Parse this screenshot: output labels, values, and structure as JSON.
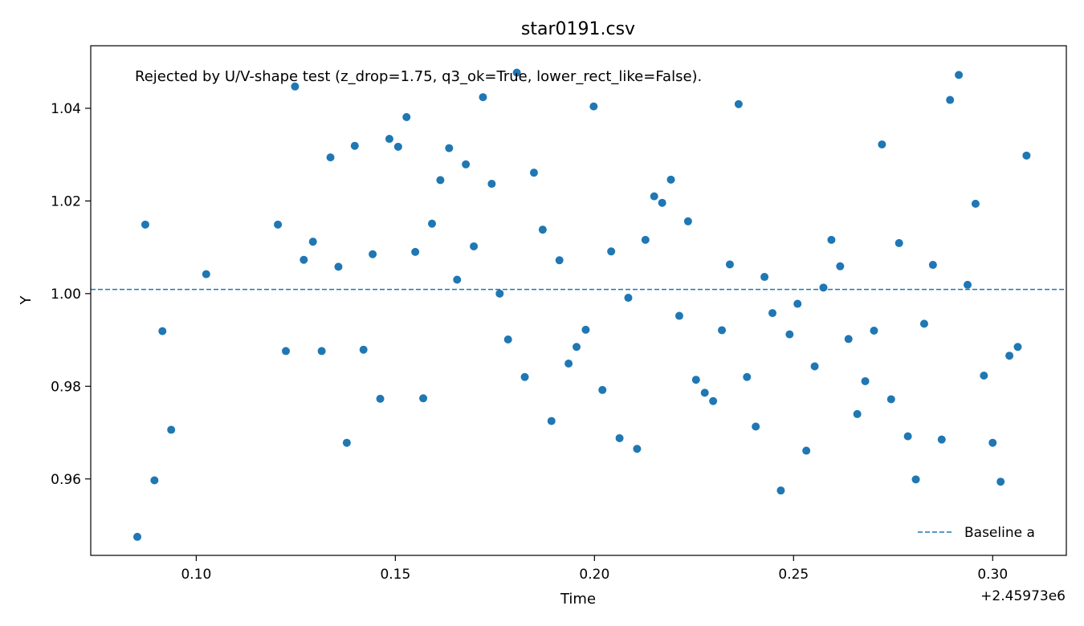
{
  "chart_data": {
    "type": "scatter",
    "title": "star0191.csv",
    "xlabel": "Time",
    "ylabel": "Y",
    "x_offset_label": "+2.45973e6",
    "xlim": [
      0.0735,
      0.3185
    ],
    "ylim": [
      0.9435,
      1.0535
    ],
    "xticks": [
      0.1,
      0.15,
      0.2,
      0.25,
      0.3
    ],
    "xtick_labels": [
      "0.10",
      "0.15",
      "0.20",
      "0.25",
      "0.30"
    ],
    "yticks": [
      0.96,
      0.98,
      1.0,
      1.02,
      1.04
    ],
    "ytick_labels": [
      "0.96",
      "0.98",
      "1.00",
      "1.02",
      "1.04"
    ],
    "grid": false,
    "legend_position": "lower-right",
    "point_color": "#1f77b4",
    "baseline": {
      "name": "Baseline a",
      "y": 1.0009,
      "color": "#1f77b4",
      "style": "dashed"
    },
    "annotation": "Rejected by U/V-shape test (z_drop=1.75, q3_ok=True, lower_rect_like=False).",
    "points": [
      [
        0.0852,
        0.9475
      ],
      [
        0.0872,
        1.0149
      ],
      [
        0.0895,
        0.9597
      ],
      [
        0.0915,
        0.9919
      ],
      [
        0.0937,
        0.9706
      ],
      [
        0.1025,
        1.0042
      ],
      [
        0.1205,
        1.0149
      ],
      [
        0.1225,
        0.9876
      ],
      [
        0.1248,
        1.0447
      ],
      [
        0.127,
        1.0073
      ],
      [
        0.1293,
        1.0112
      ],
      [
        0.1315,
        0.9876
      ],
      [
        0.1337,
        1.0294
      ],
      [
        0.1357,
        1.0058
      ],
      [
        0.1378,
        0.9678
      ],
      [
        0.1398,
        1.0319
      ],
      [
        0.142,
        0.9879
      ],
      [
        0.1443,
        1.0085
      ],
      [
        0.1462,
        0.9773
      ],
      [
        0.1485,
        1.0334
      ],
      [
        0.1507,
        1.0317
      ],
      [
        0.1528,
        1.0381
      ],
      [
        0.155,
        1.009
      ],
      [
        0.157,
        0.9774
      ],
      [
        0.1592,
        1.0151
      ],
      [
        0.1613,
        1.0245
      ],
      [
        0.1635,
        1.0314
      ],
      [
        0.1655,
        1.003
      ],
      [
        0.1677,
        1.0279
      ],
      [
        0.1697,
        1.0102
      ],
      [
        0.172,
        1.0424
      ],
      [
        0.1742,
        1.0237
      ],
      [
        0.1762,
        1.0
      ],
      [
        0.1783,
        0.9901
      ],
      [
        0.1805,
        1.0477
      ],
      [
        0.1825,
        0.982
      ],
      [
        0.1848,
        1.0261
      ],
      [
        0.187,
        1.0138
      ],
      [
        0.1892,
        0.9725
      ],
      [
        0.1912,
        1.0072
      ],
      [
        0.1935,
        0.9849
      ],
      [
        0.1955,
        0.9885
      ],
      [
        0.1978,
        0.9922
      ],
      [
        0.1998,
        1.0404
      ],
      [
        0.202,
        0.9792
      ],
      [
        0.2042,
        1.0091
      ],
      [
        0.2063,
        0.9688
      ],
      [
        0.2085,
        0.9991
      ],
      [
        0.2107,
        0.9665
      ],
      [
        0.2128,
        1.0116
      ],
      [
        0.215,
        1.021
      ],
      [
        0.217,
        1.0196
      ],
      [
        0.2192,
        1.0246
      ],
      [
        0.2213,
        0.9952
      ],
      [
        0.2235,
        1.0156
      ],
      [
        0.2255,
        0.9814
      ],
      [
        0.2277,
        0.9786
      ],
      [
        0.2298,
        0.9768
      ],
      [
        0.232,
        0.9921
      ],
      [
        0.234,
        1.0063
      ],
      [
        0.2362,
        1.0409
      ],
      [
        0.2383,
        0.982
      ],
      [
        0.2405,
        0.9713
      ],
      [
        0.2427,
        1.0036
      ],
      [
        0.2447,
        0.9958
      ],
      [
        0.2468,
        0.9575
      ],
      [
        0.249,
        0.9912
      ],
      [
        0.251,
        0.9978
      ],
      [
        0.2532,
        0.9661
      ],
      [
        0.2553,
        0.9843
      ],
      [
        0.2575,
        1.0013
      ],
      [
        0.2595,
        1.0116
      ],
      [
        0.2617,
        1.0059
      ],
      [
        0.2638,
        0.9902
      ],
      [
        0.266,
        0.974
      ],
      [
        0.268,
        0.9811
      ],
      [
        0.2702,
        0.992
      ],
      [
        0.2722,
        1.0322
      ],
      [
        0.2745,
        0.9772
      ],
      [
        0.2765,
        1.0109
      ],
      [
        0.2787,
        0.9692
      ],
      [
        0.2807,
        0.9599
      ],
      [
        0.2828,
        0.9935
      ],
      [
        0.285,
        1.0062
      ],
      [
        0.2872,
        0.9685
      ],
      [
        0.2893,
        1.0418
      ],
      [
        0.2915,
        1.0472
      ],
      [
        0.2937,
        1.0019
      ],
      [
        0.2957,
        1.0194
      ],
      [
        0.2978,
        0.9823
      ],
      [
        0.3,
        0.9678
      ],
      [
        0.302,
        0.9594
      ],
      [
        0.3042,
        0.9866
      ],
      [
        0.3063,
        0.9885
      ],
      [
        0.3085,
        1.0298
      ]
    ]
  }
}
